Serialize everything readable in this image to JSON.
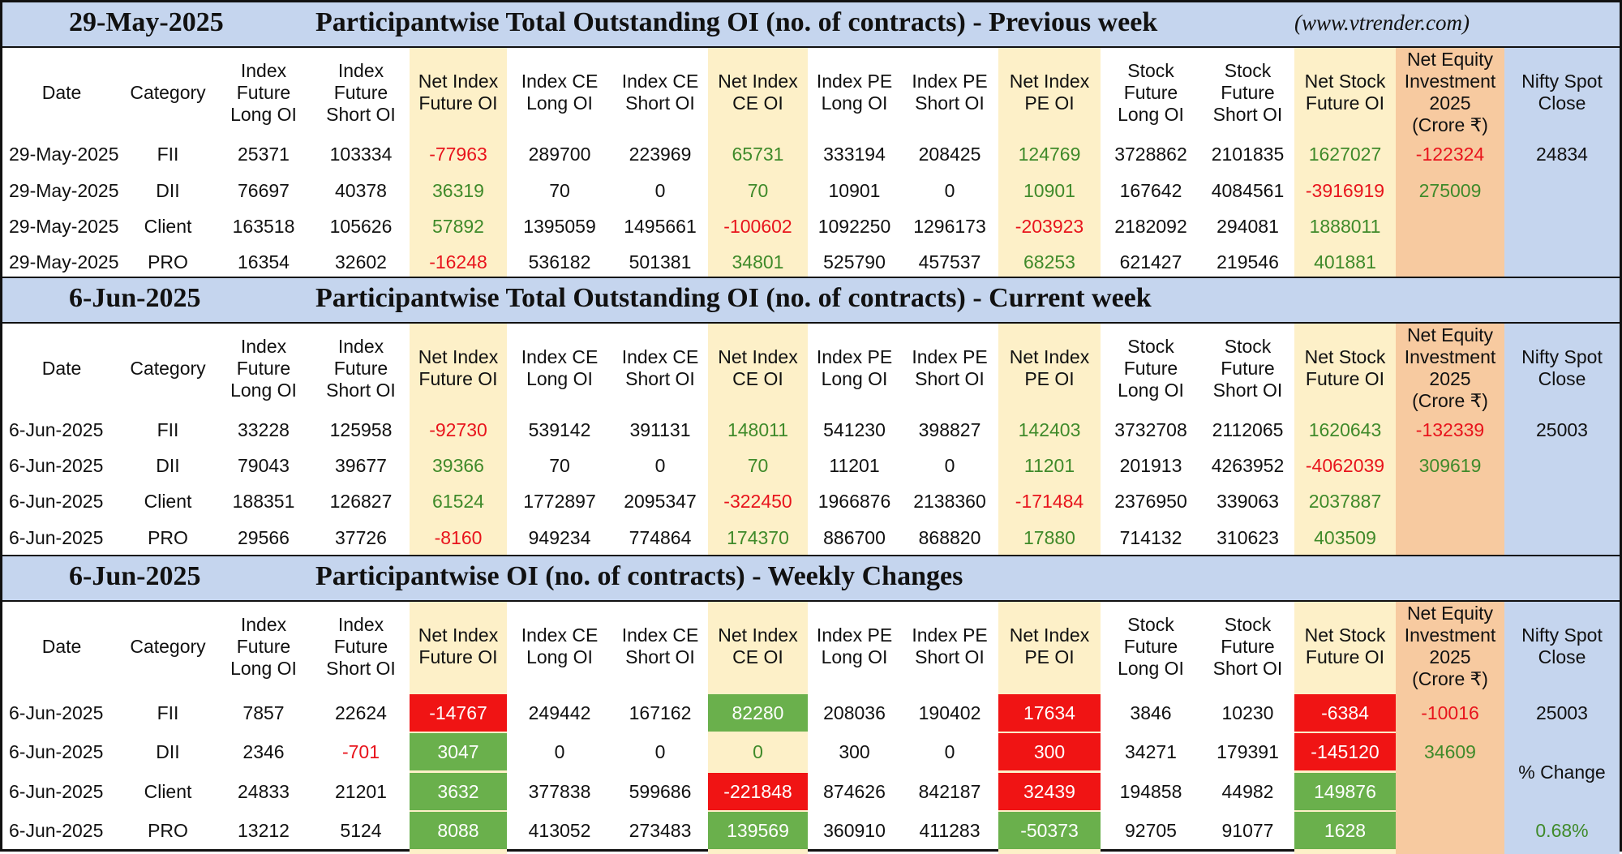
{
  "site": "(www.vtrender.com)",
  "colors": {
    "header_bg": "#c5d5ee",
    "net_col_bg": "#fdf0c8",
    "equity_col_bg": "#f7caa0",
    "neg": "#e8141c",
    "pos": "#3f8a2a",
    "fill_red": "#f01414",
    "fill_green": "#6ab04c"
  },
  "headers": [
    "Date",
    "Category",
    "Index\nFuture\nLong OI",
    "Index\nFuture\nShort OI",
    "Net Index\nFuture OI",
    "Index CE\nLong OI",
    "Index CE\nShort OI",
    "Net Index\nCE OI",
    "Index PE\nLong OI",
    "Index PE\nShort OI",
    "Net Index\nPE OI",
    "Stock\nFuture\nLong OI",
    "Stock\nFuture\nShort OI",
    "Net Stock\nFuture OI",
    "Net Equity\nInvestment\n2025\n(Crore ₹)",
    "Nifty Spot\nClose"
  ],
  "sections": [
    {
      "date": "29-May-2025",
      "title": "Participantwise Total Outstanding OI (no. of contracts) - Previous week",
      "rows": [
        [
          "29-May-2025",
          "FII",
          "25371",
          "103334",
          "-77963",
          "289700",
          "223969",
          "65731",
          "333194",
          "208425",
          "124769",
          "3728862",
          "2101835",
          "1627027",
          "-122324"
        ],
        [
          "29-May-2025",
          "DII",
          "76697",
          "40378",
          "36319",
          "70",
          "0",
          "70",
          "10901",
          "0",
          "10901",
          "167642",
          "4084561",
          "-3916919",
          "275009"
        ],
        [
          "29-May-2025",
          "Client",
          "163518",
          "105626",
          "57892",
          "1395059",
          "1495661",
          "-100602",
          "1092250",
          "1296173",
          "-203923",
          "2182092",
          "294081",
          "1888011",
          ""
        ],
        [
          "29-May-2025",
          "PRO",
          "16354",
          "32602",
          "-16248",
          "536182",
          "501381",
          "34801",
          "525790",
          "457537",
          "68253",
          "621427",
          "219546",
          "401881",
          ""
        ]
      ],
      "nifty": [
        "24834",
        "",
        "",
        ""
      ]
    },
    {
      "date": "6-Jun-2025",
      "title": "Participantwise Total Outstanding OI (no. of contracts) - Current week",
      "rows": [
        [
          "6-Jun-2025",
          "FII",
          "33228",
          "125958",
          "-92730",
          "539142",
          "391131",
          "148011",
          "541230",
          "398827",
          "142403",
          "3732708",
          "2112065",
          "1620643",
          "-132339"
        ],
        [
          "6-Jun-2025",
          "DII",
          "79043",
          "39677",
          "39366",
          "70",
          "0",
          "70",
          "11201",
          "0",
          "11201",
          "201913",
          "4263952",
          "-4062039",
          "309619"
        ],
        [
          "6-Jun-2025",
          "Client",
          "188351",
          "126827",
          "61524",
          "1772897",
          "2095347",
          "-322450",
          "1966876",
          "2138360",
          "-171484",
          "2376950",
          "339063",
          "2037887",
          ""
        ],
        [
          "6-Jun-2025",
          "PRO",
          "29566",
          "37726",
          "-8160",
          "949234",
          "774864",
          "174370",
          "886700",
          "868820",
          "17880",
          "714132",
          "310623",
          "403509",
          ""
        ]
      ],
      "nifty": [
        "25003",
        "",
        "",
        ""
      ]
    },
    {
      "date": "6-Jun-2025",
      "title": "Participantwise OI (no. of contracts) - Weekly Changes",
      "rows": [
        [
          "6-Jun-2025",
          "FII",
          "7857",
          "22624",
          "-14767",
          "249442",
          "167162",
          "82280",
          "208036",
          "190402",
          "17634",
          "3846",
          "10230",
          "-6384",
          "-10016"
        ],
        [
          "6-Jun-2025",
          "DII",
          "2346",
          "-701",
          "3047",
          "0",
          "0",
          "0",
          "300",
          "0",
          "300",
          "34271",
          "179391",
          "-145120",
          "34609"
        ],
        [
          "6-Jun-2025",
          "Client",
          "24833",
          "21201",
          "3632",
          "377838",
          "599686",
          "-221848",
          "874626",
          "842187",
          "32439",
          "194858",
          "44982",
          "149876",
          ""
        ],
        [
          "6-Jun-2025",
          "PRO",
          "13212",
          "5124",
          "8088",
          "413052",
          "273483",
          "139569",
          "360910",
          "411283",
          "-50373",
          "92705",
          "91077",
          "1628",
          ""
        ]
      ],
      "nifty": [
        "25003",
        "",
        "",
        ""
      ],
      "pct_label": "% Change",
      "pct_value": "0.68%",
      "fills": [
        [
          "",
          "",
          "",
          "",
          "red",
          "",
          "",
          "green",
          "",
          "",
          "red",
          "",
          "",
          "red",
          ""
        ],
        [
          "",
          "",
          "",
          "",
          "green",
          "",
          "",
          "",
          "",
          "",
          "red",
          "",
          "",
          "red",
          ""
        ],
        [
          "",
          "",
          "",
          "",
          "green",
          "",
          "",
          "red",
          "",
          "",
          "red",
          "",
          "",
          "green",
          ""
        ],
        [
          "",
          "",
          "",
          "",
          "green",
          "",
          "",
          "green",
          "",
          "",
          "green",
          "",
          "",
          "green",
          ""
        ]
      ]
    }
  ]
}
